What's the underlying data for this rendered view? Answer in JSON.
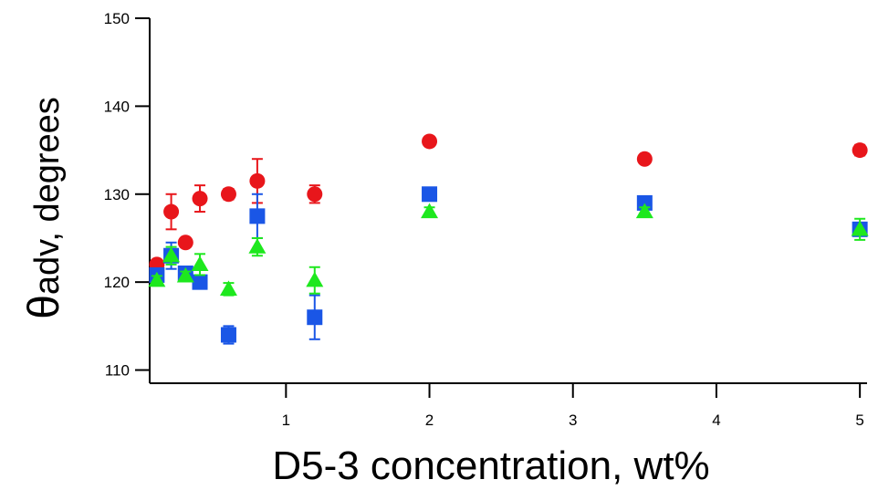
{
  "chart_data": {
    "type": "scatter",
    "title": "",
    "xlabel": "D5-3 concentration, wt%",
    "ylabel": {
      "symbol": "θ",
      "subscript": "adv",
      "unit": ", degrees"
    },
    "xlim": [
      0.05,
      5.05
    ],
    "ylim": [
      108.5,
      150
    ],
    "xticks": [
      1,
      2,
      3,
      4,
      5
    ],
    "yticks": [
      110,
      120,
      130,
      140,
      150
    ],
    "grid": false,
    "legend": "none",
    "series": [
      {
        "marker": "circle",
        "color": "#e8161b",
        "points": [
          {
            "x": 0.1,
            "y": 122.0,
            "err": 0.5
          },
          {
            "x": 0.2,
            "y": 128.0,
            "err": 2.0
          },
          {
            "x": 0.3,
            "y": 124.5,
            "err": 0.5
          },
          {
            "x": 0.4,
            "y": 129.5,
            "err": 1.5
          },
          {
            "x": 0.6,
            "y": 130.0,
            "err": 0.6
          },
          {
            "x": 0.8,
            "y": 131.5,
            "err": 2.5
          },
          {
            "x": 1.2,
            "y": 130.0,
            "err": 1.0
          },
          {
            "x": 2.0,
            "y": 136.0,
            "err": 0.5
          },
          {
            "x": 3.5,
            "y": 134.0,
            "err": 0.5
          },
          {
            "x": 5.0,
            "y": 135.0,
            "err": 0.6
          }
        ]
      },
      {
        "marker": "square",
        "color": "#1a56e6",
        "points": [
          {
            "x": 0.1,
            "y": 120.8,
            "err": 0.5
          },
          {
            "x": 0.2,
            "y": 123.0,
            "err": 1.5
          },
          {
            "x": 0.3,
            "y": 121.0,
            "err": 0.5
          },
          {
            "x": 0.4,
            "y": 120.0,
            "err": 0.5
          },
          {
            "x": 0.6,
            "y": 114.0,
            "err": 1.0
          },
          {
            "x": 0.8,
            "y": 127.5,
            "err": 2.5
          },
          {
            "x": 1.2,
            "y": 116.0,
            "err": 2.5
          },
          {
            "x": 2.0,
            "y": 130.0,
            "err": 0.5
          },
          {
            "x": 3.5,
            "y": 129.0,
            "err": 0.5
          },
          {
            "x": 5.0,
            "y": 126.0,
            "err": 0.5
          }
        ]
      },
      {
        "marker": "triangle",
        "color": "#1ee81e",
        "points": [
          {
            "x": 0.1,
            "y": 120.2,
            "err": 0.5
          },
          {
            "x": 0.2,
            "y": 123.0,
            "err": 1.0
          },
          {
            "x": 0.3,
            "y": 120.7,
            "err": 0.5
          },
          {
            "x": 0.4,
            "y": 122.0,
            "err": 1.2
          },
          {
            "x": 0.6,
            "y": 119.2,
            "err": 0.7
          },
          {
            "x": 0.8,
            "y": 124.0,
            "err": 1.0
          },
          {
            "x": 1.2,
            "y": 120.2,
            "err": 1.5
          },
          {
            "x": 2.0,
            "y": 128.0,
            "err": 0.5
          },
          {
            "x": 3.5,
            "y": 128.0,
            "err": 0.5
          },
          {
            "x": 5.0,
            "y": 126.0,
            "err": 1.2
          }
        ]
      }
    ]
  }
}
